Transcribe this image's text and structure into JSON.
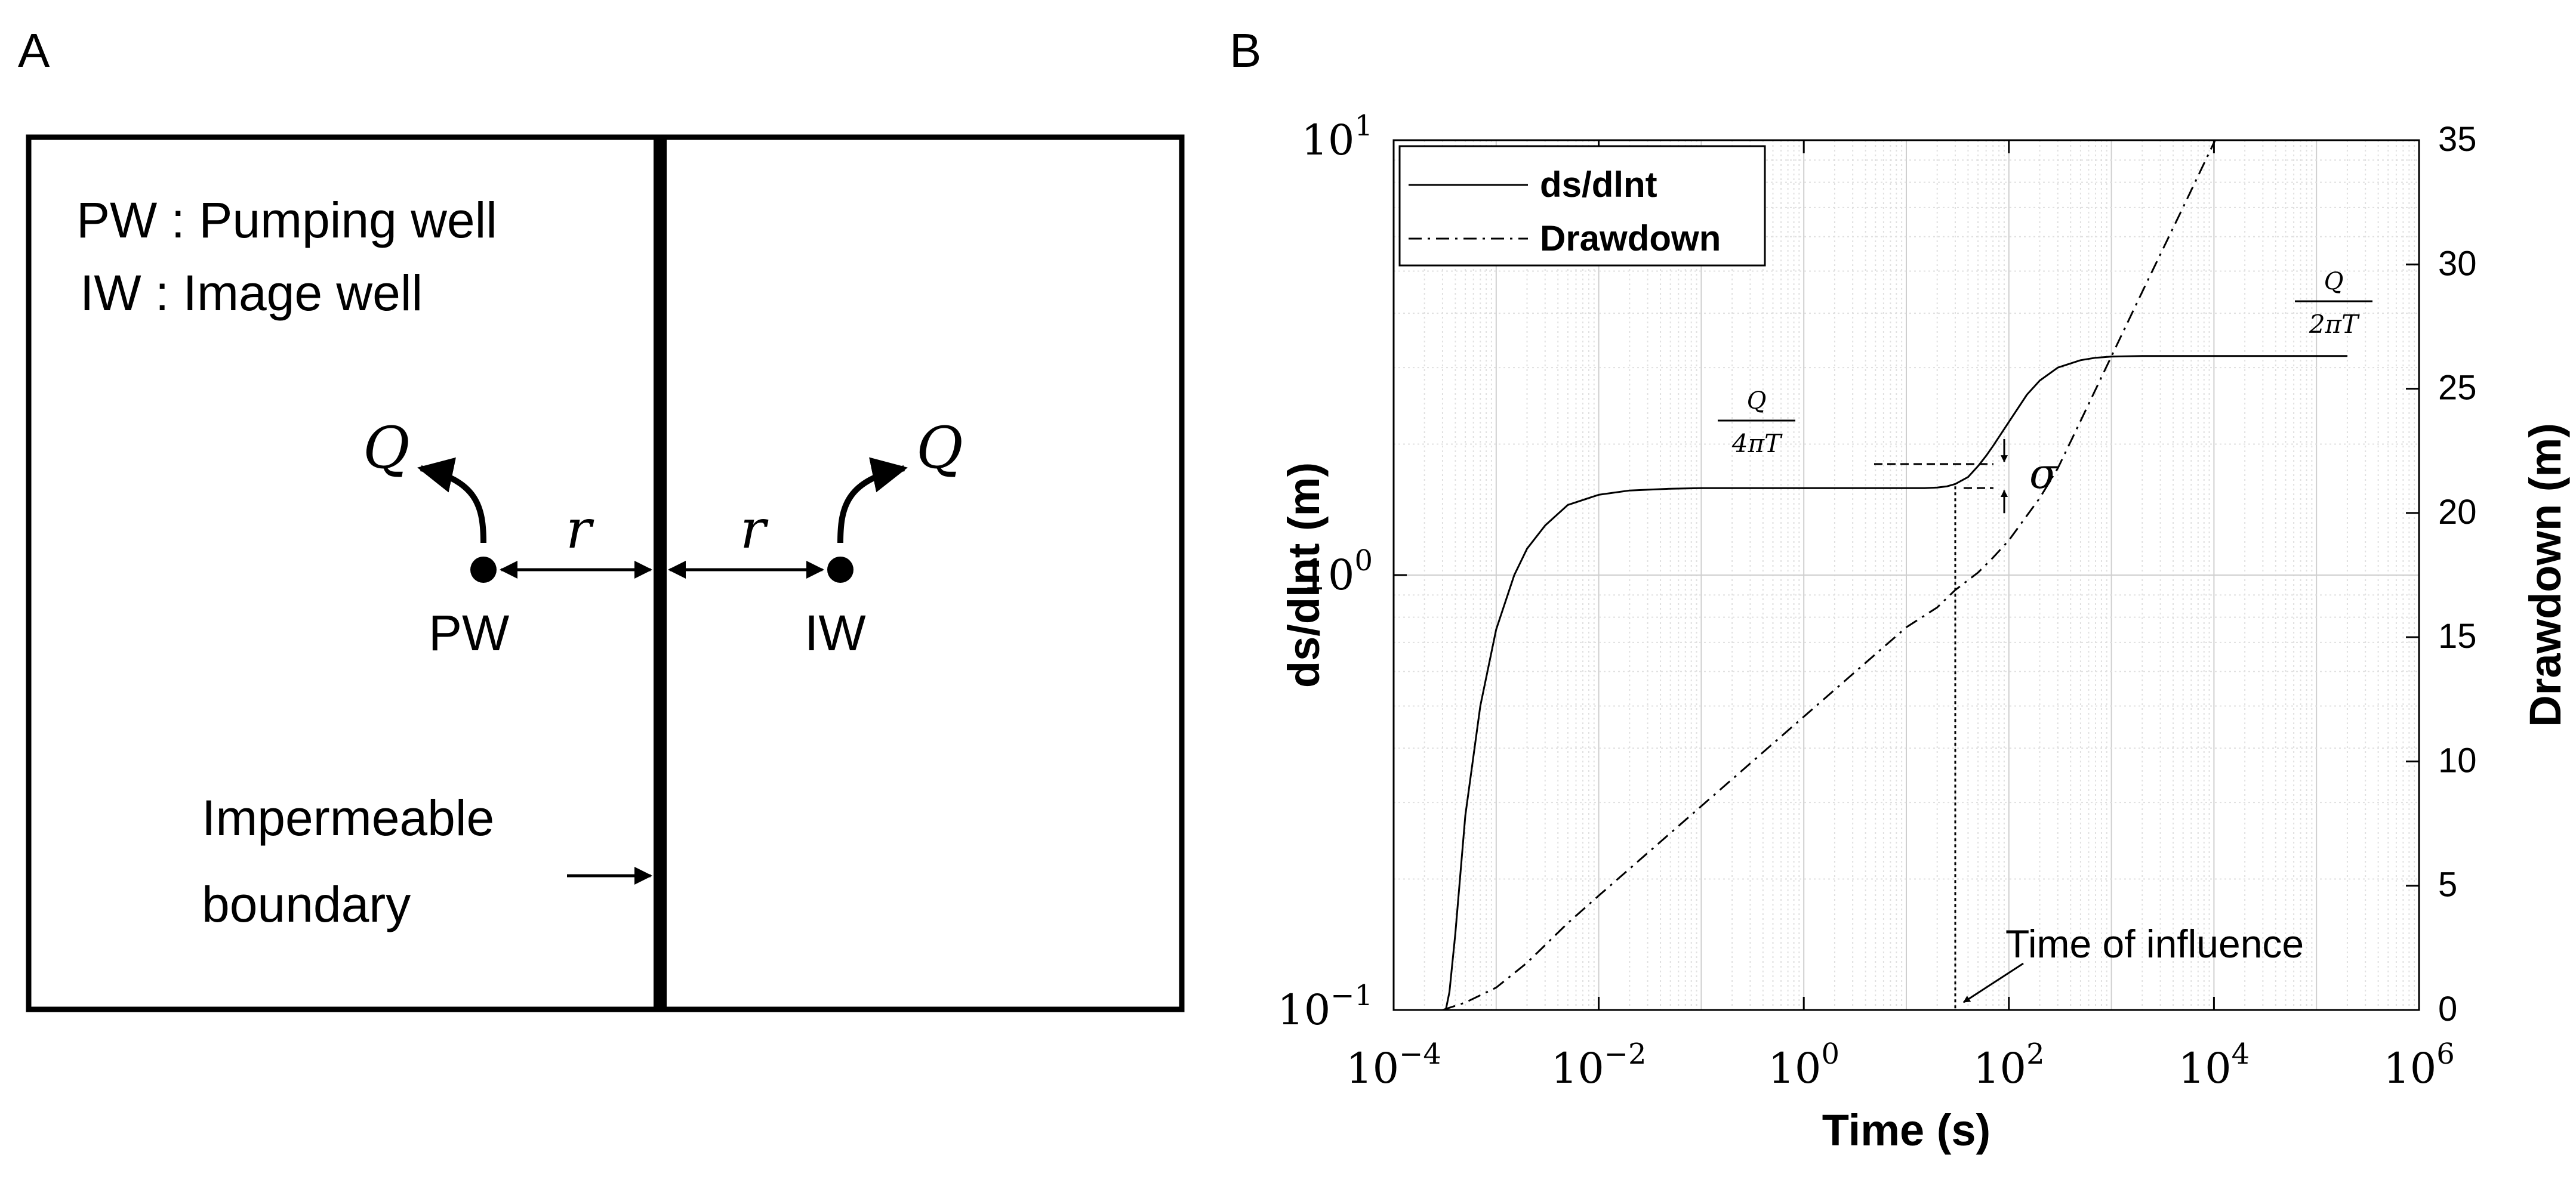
{
  "panel_a": {
    "label": "A",
    "legend_pw": "PW : Pumping well",
    "legend_iw": "IW : Image well",
    "q_left": "Q",
    "q_right": "Q",
    "r_left": "r",
    "r_right": "r",
    "pw_label": "PW",
    "iw_label": "IW",
    "boundary_line1": "Impermeable",
    "boundary_line2": "boundary"
  },
  "panel_b": {
    "label": "B",
    "annotations": {
      "q4_num": "Q",
      "q4_den": "4πT",
      "q2_num": "Q",
      "q2_den": "2πT",
      "sigma": "σ",
      "time_of_influence": "Time of influence"
    }
  },
  "chart_data": {
    "type": "line",
    "xlabel": "Time (s)",
    "ylabel": "ds/dlnt (m)",
    "y2label": "Drawdown (m)",
    "xscale": "log",
    "yscale": "log",
    "xlim": [
      0.0001,
      1000000
    ],
    "ylim": [
      0.1,
      10
    ],
    "y2lim": [
      0,
      35
    ],
    "grid": true,
    "legend_position": "top-left",
    "x_ticks": [
      {
        "v": 0.0001,
        "base": "10",
        "exp": "−4"
      },
      {
        "v": 0.01,
        "base": "10",
        "exp": "−2"
      },
      {
        "v": 1,
        "base": "10",
        "exp": "0"
      },
      {
        "v": 100,
        "base": "10",
        "exp": "2"
      },
      {
        "v": 10000,
        "base": "10",
        "exp": "4"
      },
      {
        "v": 1000000,
        "base": "10",
        "exp": "6"
      }
    ],
    "y_ticks": [
      {
        "v": 0.1,
        "base": "10",
        "exp": "−1"
      },
      {
        "v": 1,
        "base": "10",
        "exp": "0"
      },
      {
        "v": 10,
        "base": "10",
        "exp": "1"
      }
    ],
    "y2_ticks": [
      "0",
      "5",
      "10",
      "15",
      "20",
      "25",
      "30",
      "35"
    ],
    "time_of_influence": 30,
    "series": [
      {
        "name": "ds/dlnt",
        "style": "solid",
        "axis": "left",
        "x": [
          0.0003,
          0.00035,
          0.0004,
          0.0005,
          0.0007,
          0.001,
          0.0015,
          0.002,
          0.003,
          0.005,
          0.01,
          0.02,
          0.05,
          0.1,
          1,
          5,
          10,
          15,
          20,
          25,
          30,
          40,
          50,
          60,
          70,
          100,
          150,
          200,
          300,
          500,
          700,
          1000,
          2000,
          5000,
          10000,
          100000,
          200000
        ],
        "values": [
          0.092,
          0.11,
          0.15,
          0.28,
          0.5,
          0.75,
          1.0,
          1.15,
          1.3,
          1.45,
          1.53,
          1.565,
          1.58,
          1.585,
          1.585,
          1.585,
          1.585,
          1.585,
          1.59,
          1.6,
          1.62,
          1.68,
          1.78,
          1.88,
          1.98,
          2.25,
          2.6,
          2.8,
          3.0,
          3.12,
          3.16,
          3.18,
          3.19,
          3.19,
          3.19,
          3.19,
          3.19
        ]
      },
      {
        "name": "Drawdown",
        "style": "dashdot",
        "axis": "right",
        "x": [
          0.0003,
          0.0005,
          0.001,
          0.002,
          0.005,
          0.01,
          0.1,
          1,
          10,
          20,
          30,
          50,
          70,
          100,
          200,
          300,
          500,
          1000,
          2000,
          5000,
          10000,
          20000
        ],
        "values": [
          0,
          0.3,
          0.9,
          1.9,
          3.5,
          4.6,
          8.2,
          11.8,
          15.4,
          16.2,
          16.9,
          17.6,
          18.2,
          18.9,
          20.6,
          21.8,
          23.7,
          26.3,
          28.9,
          32.3,
          34.9,
          37.5
        ]
      }
    ]
  }
}
